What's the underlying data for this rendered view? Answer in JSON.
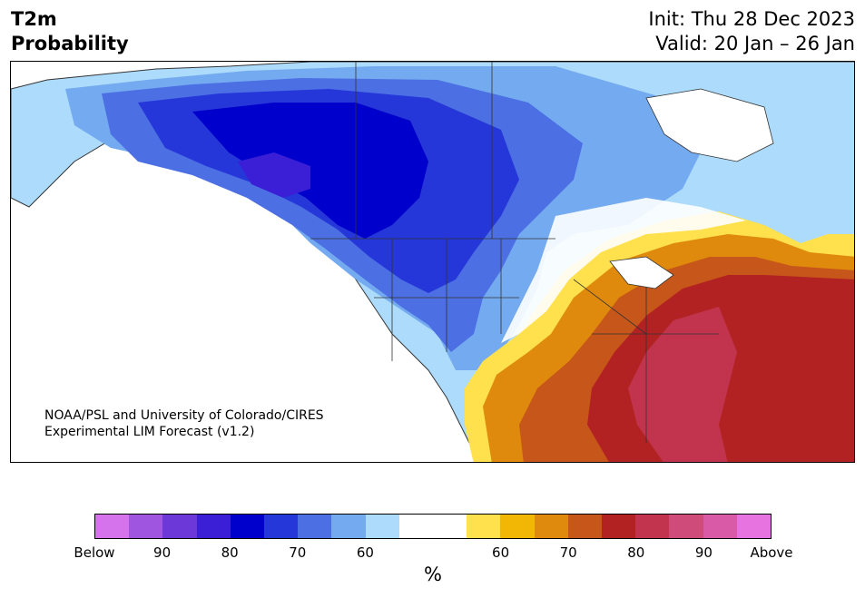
{
  "header": {
    "title": "T2m\nProbability",
    "init": "Init: Thu 28 Dec 2023",
    "valid": "Valid: 20 Jan – 26 Jan"
  },
  "credit": {
    "line1": "NOAA/PSL and University of Colorado/CIRES",
    "line2": "Experimental LIM Forecast (v1.2)"
  },
  "colorbar": {
    "unit": "%",
    "colors": [
      "#d473eb",
      "#9f55e0",
      "#6c38d8",
      "#3a1fd6",
      "#0000cc",
      "#2537d9",
      "#4c6fe3",
      "#74aaf0",
      "#acdbfb",
      "#ffffff",
      "#ffffff",
      "#ffe04d",
      "#f2b705",
      "#df8a0c",
      "#c7561a",
      "#b22222",
      "#c2344e",
      "#cf4b79",
      "#d95ba7",
      "#e673e0"
    ],
    "tick_labels": [
      "Below",
      "90",
      "80",
      "70",
      "60",
      "60",
      "70",
      "80",
      "90",
      "Above"
    ]
  },
  "map": {
    "land_color": "#ffffff",
    "boundary_color": "#333333"
  }
}
